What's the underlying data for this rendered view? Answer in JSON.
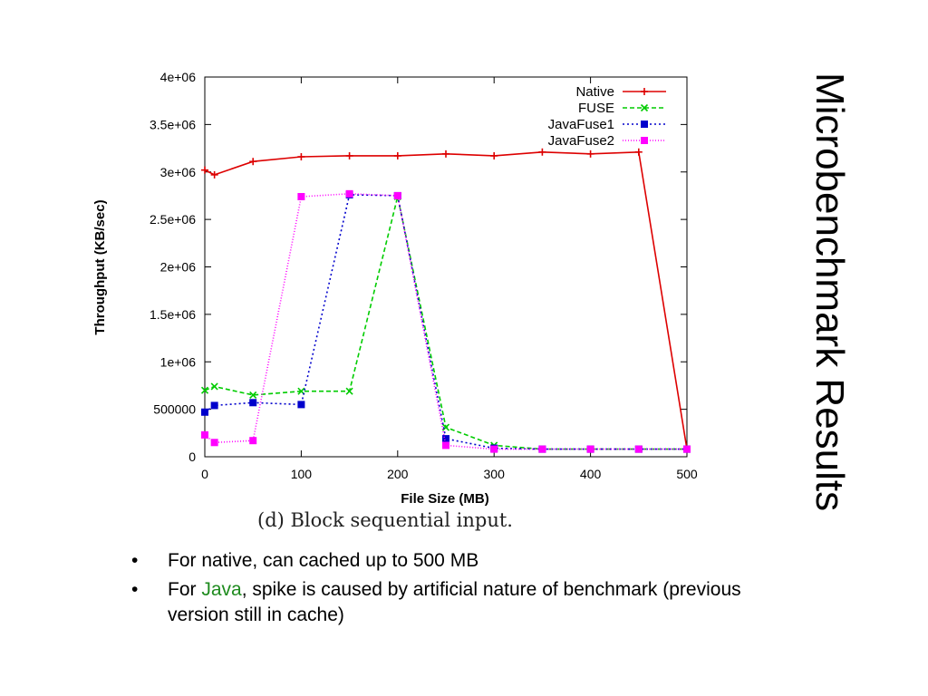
{
  "slide": {
    "title": "Microbenchmark Results",
    "caption": "(d) Block sequential input.",
    "bullets": [
      {
        "text": "For native, can cached up to 500 MB"
      },
      {
        "prefix": "For ",
        "highlight": "Java",
        "suffix": ", spike is caused by artificial nature of benchmark (previous version still in cache)"
      }
    ],
    "bullet_symbol": "•",
    "highlight_color": "#1e8b1e"
  },
  "chart_data": {
    "type": "line",
    "title": "",
    "xlabel": "File Size (MB)",
    "ylabel": "Throughput (KB/sec)",
    "xlim": [
      0,
      500
    ],
    "ylim": [
      0,
      4000000
    ],
    "xticks": [
      0,
      100,
      200,
      300,
      400,
      500
    ],
    "xtick_labels": [
      "0",
      "100",
      "200",
      "300",
      "400",
      "500"
    ],
    "yticks": [
      0,
      500000,
      1000000,
      1500000,
      2000000,
      2500000,
      3000000,
      3500000,
      4000000
    ],
    "ytick_labels": [
      "0",
      "500000",
      "1e+06",
      "1.5e+06",
      "2e+06",
      "2.5e+06",
      "3e+06",
      "3.5e+06",
      "4e+06"
    ],
    "grid": false,
    "legend_position": "top-right",
    "series": [
      {
        "name": "Native",
        "color": "#dd0000",
        "dash": "",
        "marker": "plus",
        "points": [
          [
            0,
            3020000
          ],
          [
            10,
            2970000
          ],
          [
            50,
            3110000
          ],
          [
            100,
            3160000
          ],
          [
            150,
            3170000
          ],
          [
            200,
            3170000
          ],
          [
            250,
            3190000
          ],
          [
            300,
            3170000
          ],
          [
            350,
            3210000
          ],
          [
            400,
            3190000
          ],
          [
            450,
            3210000
          ],
          [
            500,
            80000
          ]
        ]
      },
      {
        "name": "FUSE",
        "color": "#00cc00",
        "dash": "5,3",
        "marker": "cross",
        "points": [
          [
            0,
            700000
          ],
          [
            10,
            740000
          ],
          [
            50,
            650000
          ],
          [
            100,
            690000
          ],
          [
            150,
            690000
          ],
          [
            200,
            2740000
          ],
          [
            250,
            310000
          ],
          [
            300,
            120000
          ],
          [
            350,
            80000
          ],
          [
            400,
            80000
          ],
          [
            450,
            80000
          ],
          [
            500,
            80000
          ]
        ]
      },
      {
        "name": "JavaFuse1",
        "color": "#0000cc",
        "dash": "2,3",
        "marker": "square",
        "points": [
          [
            0,
            470000
          ],
          [
            10,
            540000
          ],
          [
            50,
            570000
          ],
          [
            100,
            550000
          ],
          [
            150,
            2760000
          ],
          [
            200,
            2750000
          ],
          [
            250,
            190000
          ],
          [
            300,
            90000
          ],
          [
            350,
            80000
          ],
          [
            400,
            80000
          ],
          [
            450,
            80000
          ],
          [
            500,
            80000
          ]
        ]
      },
      {
        "name": "JavaFuse2",
        "color": "#ff00ff",
        "dash": "1,2",
        "marker": "square",
        "points": [
          [
            0,
            230000
          ],
          [
            10,
            150000
          ],
          [
            50,
            170000
          ],
          [
            100,
            2740000
          ],
          [
            150,
            2770000
          ],
          [
            200,
            2750000
          ],
          [
            250,
            120000
          ],
          [
            300,
            80000
          ],
          [
            350,
            80000
          ],
          [
            400,
            80000
          ],
          [
            450,
            80000
          ],
          [
            500,
            80000
          ]
        ]
      }
    ]
  }
}
